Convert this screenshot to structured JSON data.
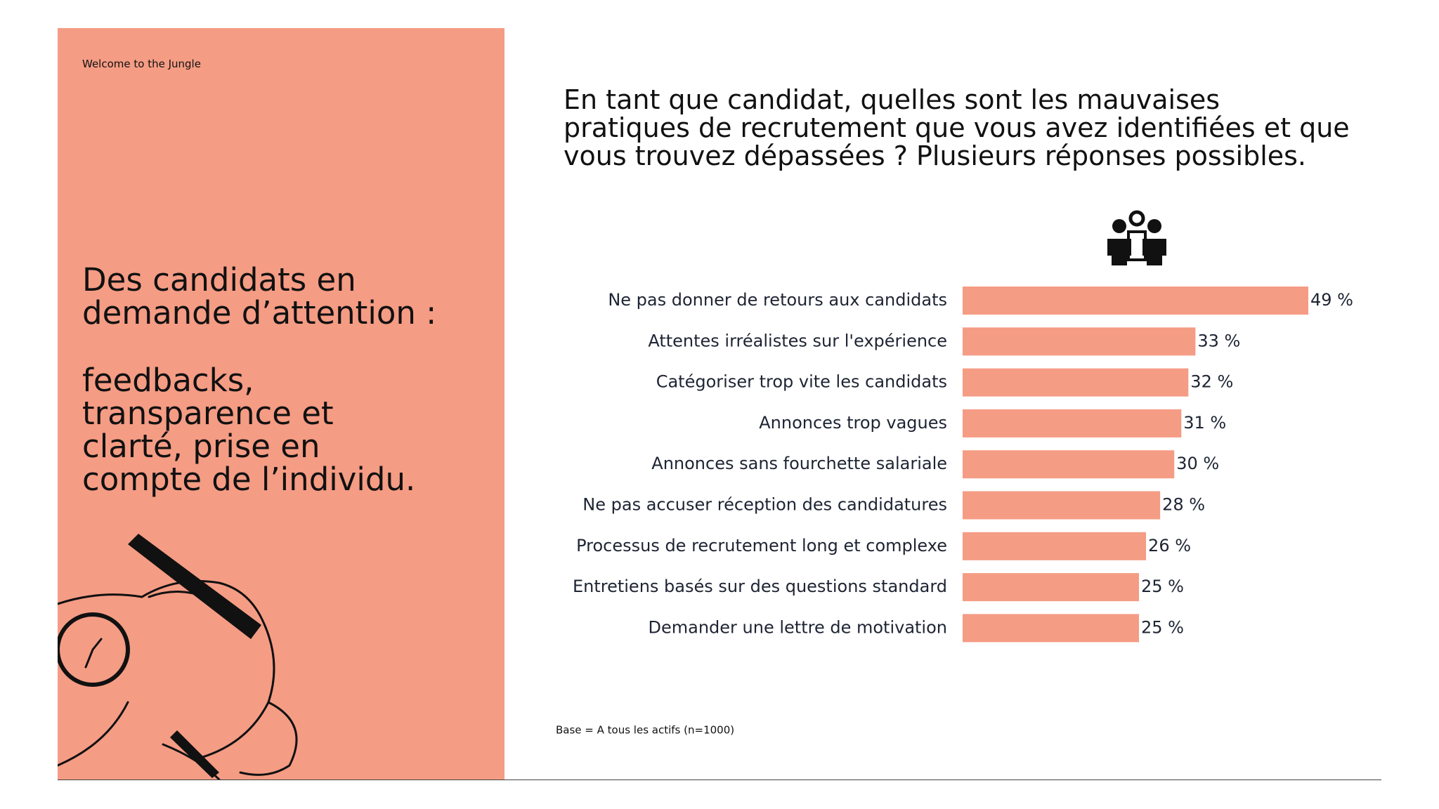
{
  "brand": "Welcome to the Jungle",
  "panel": {
    "headline": "Des candidats en demande d’attention :",
    "subline": "feedbacks, transparence et clarté, prise en compte de l’individu."
  },
  "chart_data": {
    "type": "bar",
    "orientation": "horizontal",
    "title": "En tant que candidat, quelles sont les mauvaises pratiques de recrutement que vous avez identifiées et que vous trouvez dépassées ? Plusieurs réponses possibles.",
    "categories": [
      "Ne pas donner de retours aux candidats",
      "Attentes irréalistes sur l'expérience",
      "Catégoriser trop vite les candidats",
      "Annonces trop vagues",
      "Annonces sans fourchette salariale",
      "Ne pas accuser réception des candidatures",
      "Processus de recrutement long et complexe",
      "Entretiens basés sur des questions standard",
      "Demander une lettre de motivation"
    ],
    "values": [
      49,
      33,
      32,
      31,
      30,
      28,
      26,
      25,
      25
    ],
    "value_labels": [
      "49 %",
      "33 %",
      "32 %",
      "31 %",
      "30 %",
      "28 %",
      "26 %",
      "25 %",
      "25 %"
    ],
    "color": "#f59c84",
    "note": "Base = A tous les actifs (n=1000)"
  }
}
